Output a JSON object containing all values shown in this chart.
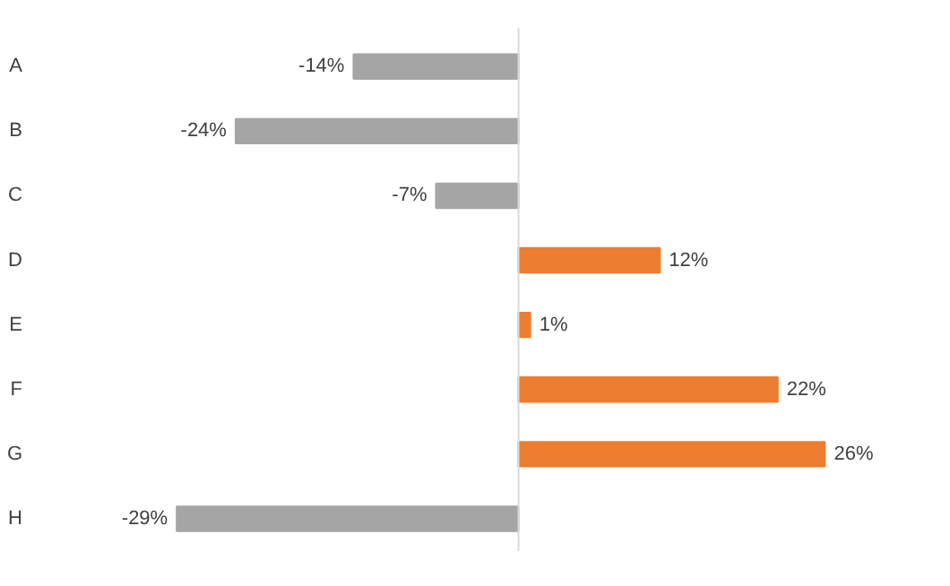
{
  "chart_data": {
    "type": "bar",
    "orientation": "horizontal",
    "categories": [
      "A",
      "B",
      "C",
      "D",
      "E",
      "F",
      "G",
      "H"
    ],
    "values": [
      -14,
      -24,
      -7,
      12,
      1,
      22,
      26,
      -29
    ],
    "colors": [
      "#a5a5a5",
      "#a5a5a5",
      "#a5a5a5",
      "#ed7d31",
      "#ed7d31",
      "#ed7d31",
      "#ed7d31",
      "#a5a5a5"
    ],
    "value_labels": [
      "-14%",
      "-24%",
      "-7%",
      "12%",
      "1%",
      "22%",
      "26%",
      "-29%"
    ],
    "grid": false
  }
}
